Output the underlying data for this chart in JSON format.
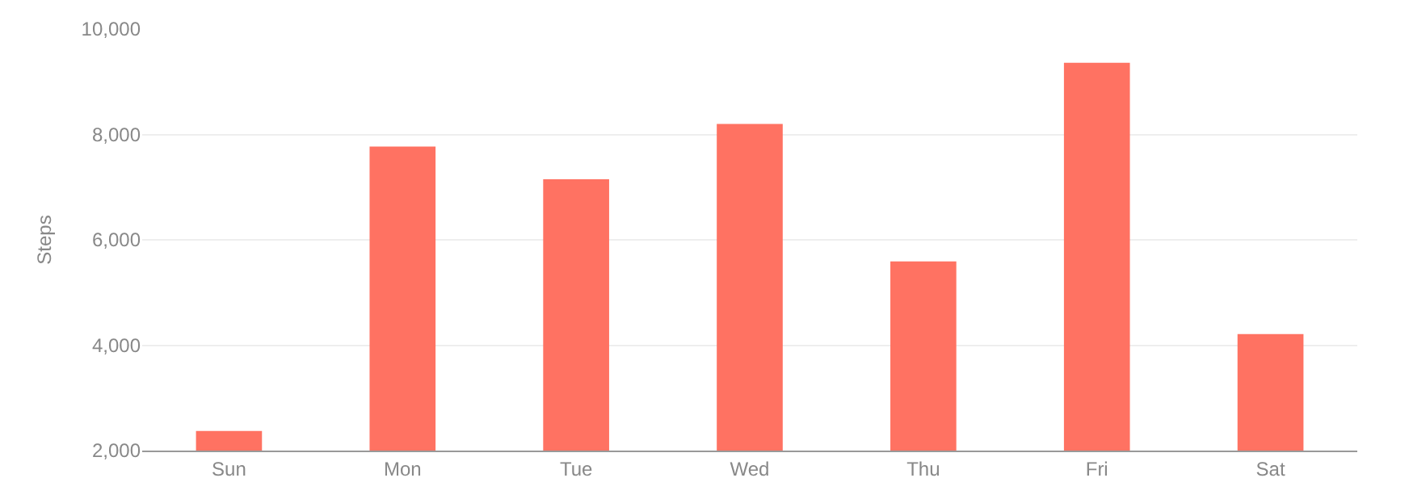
{
  "chart_data": {
    "type": "bar",
    "ylabel": "Steps",
    "categories": [
      "Sun",
      "Mon",
      "Tue",
      "Wed",
      "Thu",
      "Fri",
      "Sat"
    ],
    "values": [
      2370,
      7770,
      7150,
      8200,
      5590,
      9360,
      4210
    ],
    "color": "#ff7262",
    "ylim": [
      2000,
      10000
    ],
    "yticks": [
      {
        "value": 2000,
        "label": "2,000"
      },
      {
        "value": 4000,
        "label": "4,000"
      },
      {
        "value": 6000,
        "label": "6,000"
      },
      {
        "value": 8000,
        "label": "8,000"
      },
      {
        "value": 10000,
        "label": "10,000"
      }
    ],
    "grid": "y",
    "legend": false
  }
}
